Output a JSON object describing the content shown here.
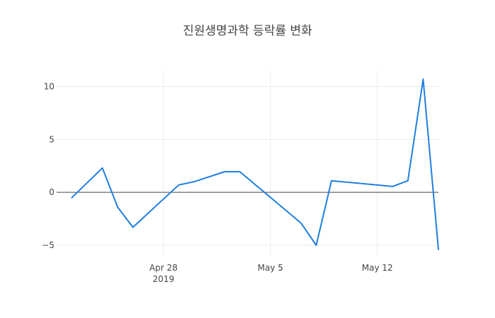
{
  "chart_data": {
    "type": "line",
    "title": "진원생명과학 등락률 변화",
    "xlabel": "",
    "ylabel": "",
    "x_type": "date",
    "xlim": [
      "2019-04-21",
      "2019-05-16"
    ],
    "ylim": [
      -6.0,
      11.5
    ],
    "x_ticks": [
      {
        "value": "2019-04-28",
        "label": "Apr 28",
        "sublabel": "2019"
      },
      {
        "value": "2019-05-05",
        "label": "May 5",
        "sublabel": ""
      },
      {
        "value": "2019-05-12",
        "label": "May 12",
        "sublabel": ""
      }
    ],
    "y_ticks": [
      10,
      5,
      0,
      -5
    ],
    "y_tick_labels": [
      "10",
      "5",
      "0",
      "−5"
    ],
    "grid": true,
    "zero_line": true,
    "line_color": "#1f7fe0",
    "series": [
      {
        "name": "",
        "x": [
          "2019-04-22",
          "2019-04-24",
          "2019-04-25",
          "2019-04-26",
          "2019-04-29",
          "2019-04-30",
          "2019-05-02",
          "2019-05-03",
          "2019-05-07",
          "2019-05-08",
          "2019-05-09",
          "2019-05-13",
          "2019-05-14",
          "2019-05-15",
          "2019-05-16"
        ],
        "y": [
          -0.5,
          2.3,
          -1.4,
          -3.3,
          0.7,
          1.0,
          1.95,
          1.95,
          -2.9,
          -5.0,
          1.1,
          0.55,
          1.1,
          10.7,
          -5.4
        ]
      }
    ]
  }
}
